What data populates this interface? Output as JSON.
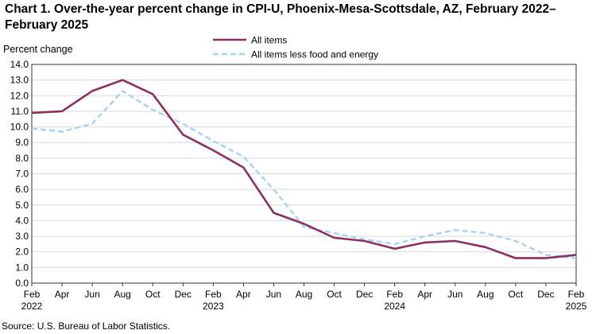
{
  "chart_data": {
    "type": "line",
    "title": "Chart 1. Over-the-year percent change in CPI-U, Phoenix-Mesa-Scottsdale,  AZ, February 2022–February 2025",
    "ylabel": "Percent change",
    "xlabel": "",
    "ylim": [
      0,
      14
    ],
    "yticks": [
      "0.0",
      "1.0",
      "2.0",
      "3.0",
      "4.0",
      "5.0",
      "6.0",
      "7.0",
      "8.0",
      "9.0",
      "10.0",
      "11.0",
      "12.0",
      "13.0",
      "14.0"
    ],
    "x": [
      "Feb 2022",
      "Apr 2022",
      "Jun 2022",
      "Aug 2022",
      "Oct 2022",
      "Dec 2022",
      "Feb 2023",
      "Apr 2023",
      "Jun 2023",
      "Aug 2023",
      "Oct 2023",
      "Dec 2023",
      "Feb 2024",
      "Apr 2024",
      "Jun 2024",
      "Aug 2024",
      "Oct 2024",
      "Dec 2024",
      "Feb 2025"
    ],
    "xtick_labels": [
      {
        "month": "Feb",
        "year": "2022"
      },
      {
        "month": "Apr",
        "year": ""
      },
      {
        "month": "Jun",
        "year": ""
      },
      {
        "month": "Aug",
        "year": ""
      },
      {
        "month": "Oct",
        "year": ""
      },
      {
        "month": "Dec",
        "year": ""
      },
      {
        "month": "Feb",
        "year": "2023"
      },
      {
        "month": "Apr",
        "year": ""
      },
      {
        "month": "Jun",
        "year": ""
      },
      {
        "month": "Aug",
        "year": ""
      },
      {
        "month": "Oct",
        "year": ""
      },
      {
        "month": "Dec",
        "year": ""
      },
      {
        "month": "Feb",
        "year": "2024"
      },
      {
        "month": "Apr",
        "year": ""
      },
      {
        "month": "Jun",
        "year": ""
      },
      {
        "month": "Aug",
        "year": ""
      },
      {
        "month": "Oct",
        "year": ""
      },
      {
        "month": "Dec",
        "year": ""
      },
      {
        "month": "Feb",
        "year": "2025"
      }
    ],
    "series": [
      {
        "name": "All items",
        "color": "#8b3060",
        "dashed": false,
        "values": [
          10.9,
          11.0,
          12.3,
          13.0,
          12.1,
          9.5,
          8.5,
          7.4,
          4.5,
          3.8,
          2.9,
          2.7,
          2.2,
          2.6,
          2.7,
          2.3,
          1.6,
          1.6,
          1.8
        ]
      },
      {
        "name": "All items less food and energy",
        "color": "#a8d4f4",
        "dashed": true,
        "values": [
          9.9,
          9.7,
          10.2,
          12.3,
          11.1,
          10.2,
          9.1,
          8.1,
          6.0,
          3.6,
          3.2,
          2.8,
          2.5,
          3.0,
          3.4,
          3.2,
          2.7,
          1.8,
          1.6
        ]
      }
    ],
    "grid": true,
    "legend_position": "top-center"
  },
  "source": "Source:  U.S. Bureau  of Labor Statistics."
}
